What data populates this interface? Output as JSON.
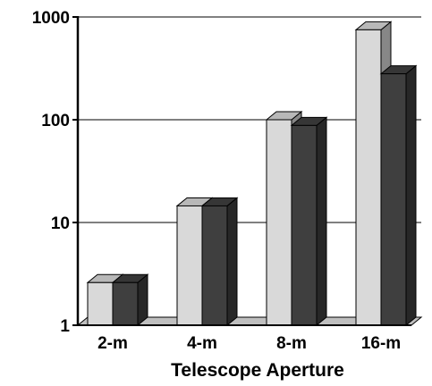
{
  "chart_data": {
    "type": "bar",
    "title": "",
    "xlabel": "Telescope Aperture",
    "ylabel": "",
    "yscale": "log",
    "ylim": [
      1,
      1000
    ],
    "yticks": [
      "1",
      "10",
      "100",
      "1000"
    ],
    "grid": true,
    "legend": "none",
    "style": "3d",
    "categories": [
      "2-m",
      "4-m",
      "8-m",
      "16-m"
    ],
    "series": [
      {
        "values": [
          2.6,
          14.5,
          100,
          750
        ],
        "color": "#d9d9d9"
      },
      {
        "values": [
          2.6,
          14.5,
          88,
          280
        ],
        "color": "#3f3f3f"
      }
    ]
  }
}
